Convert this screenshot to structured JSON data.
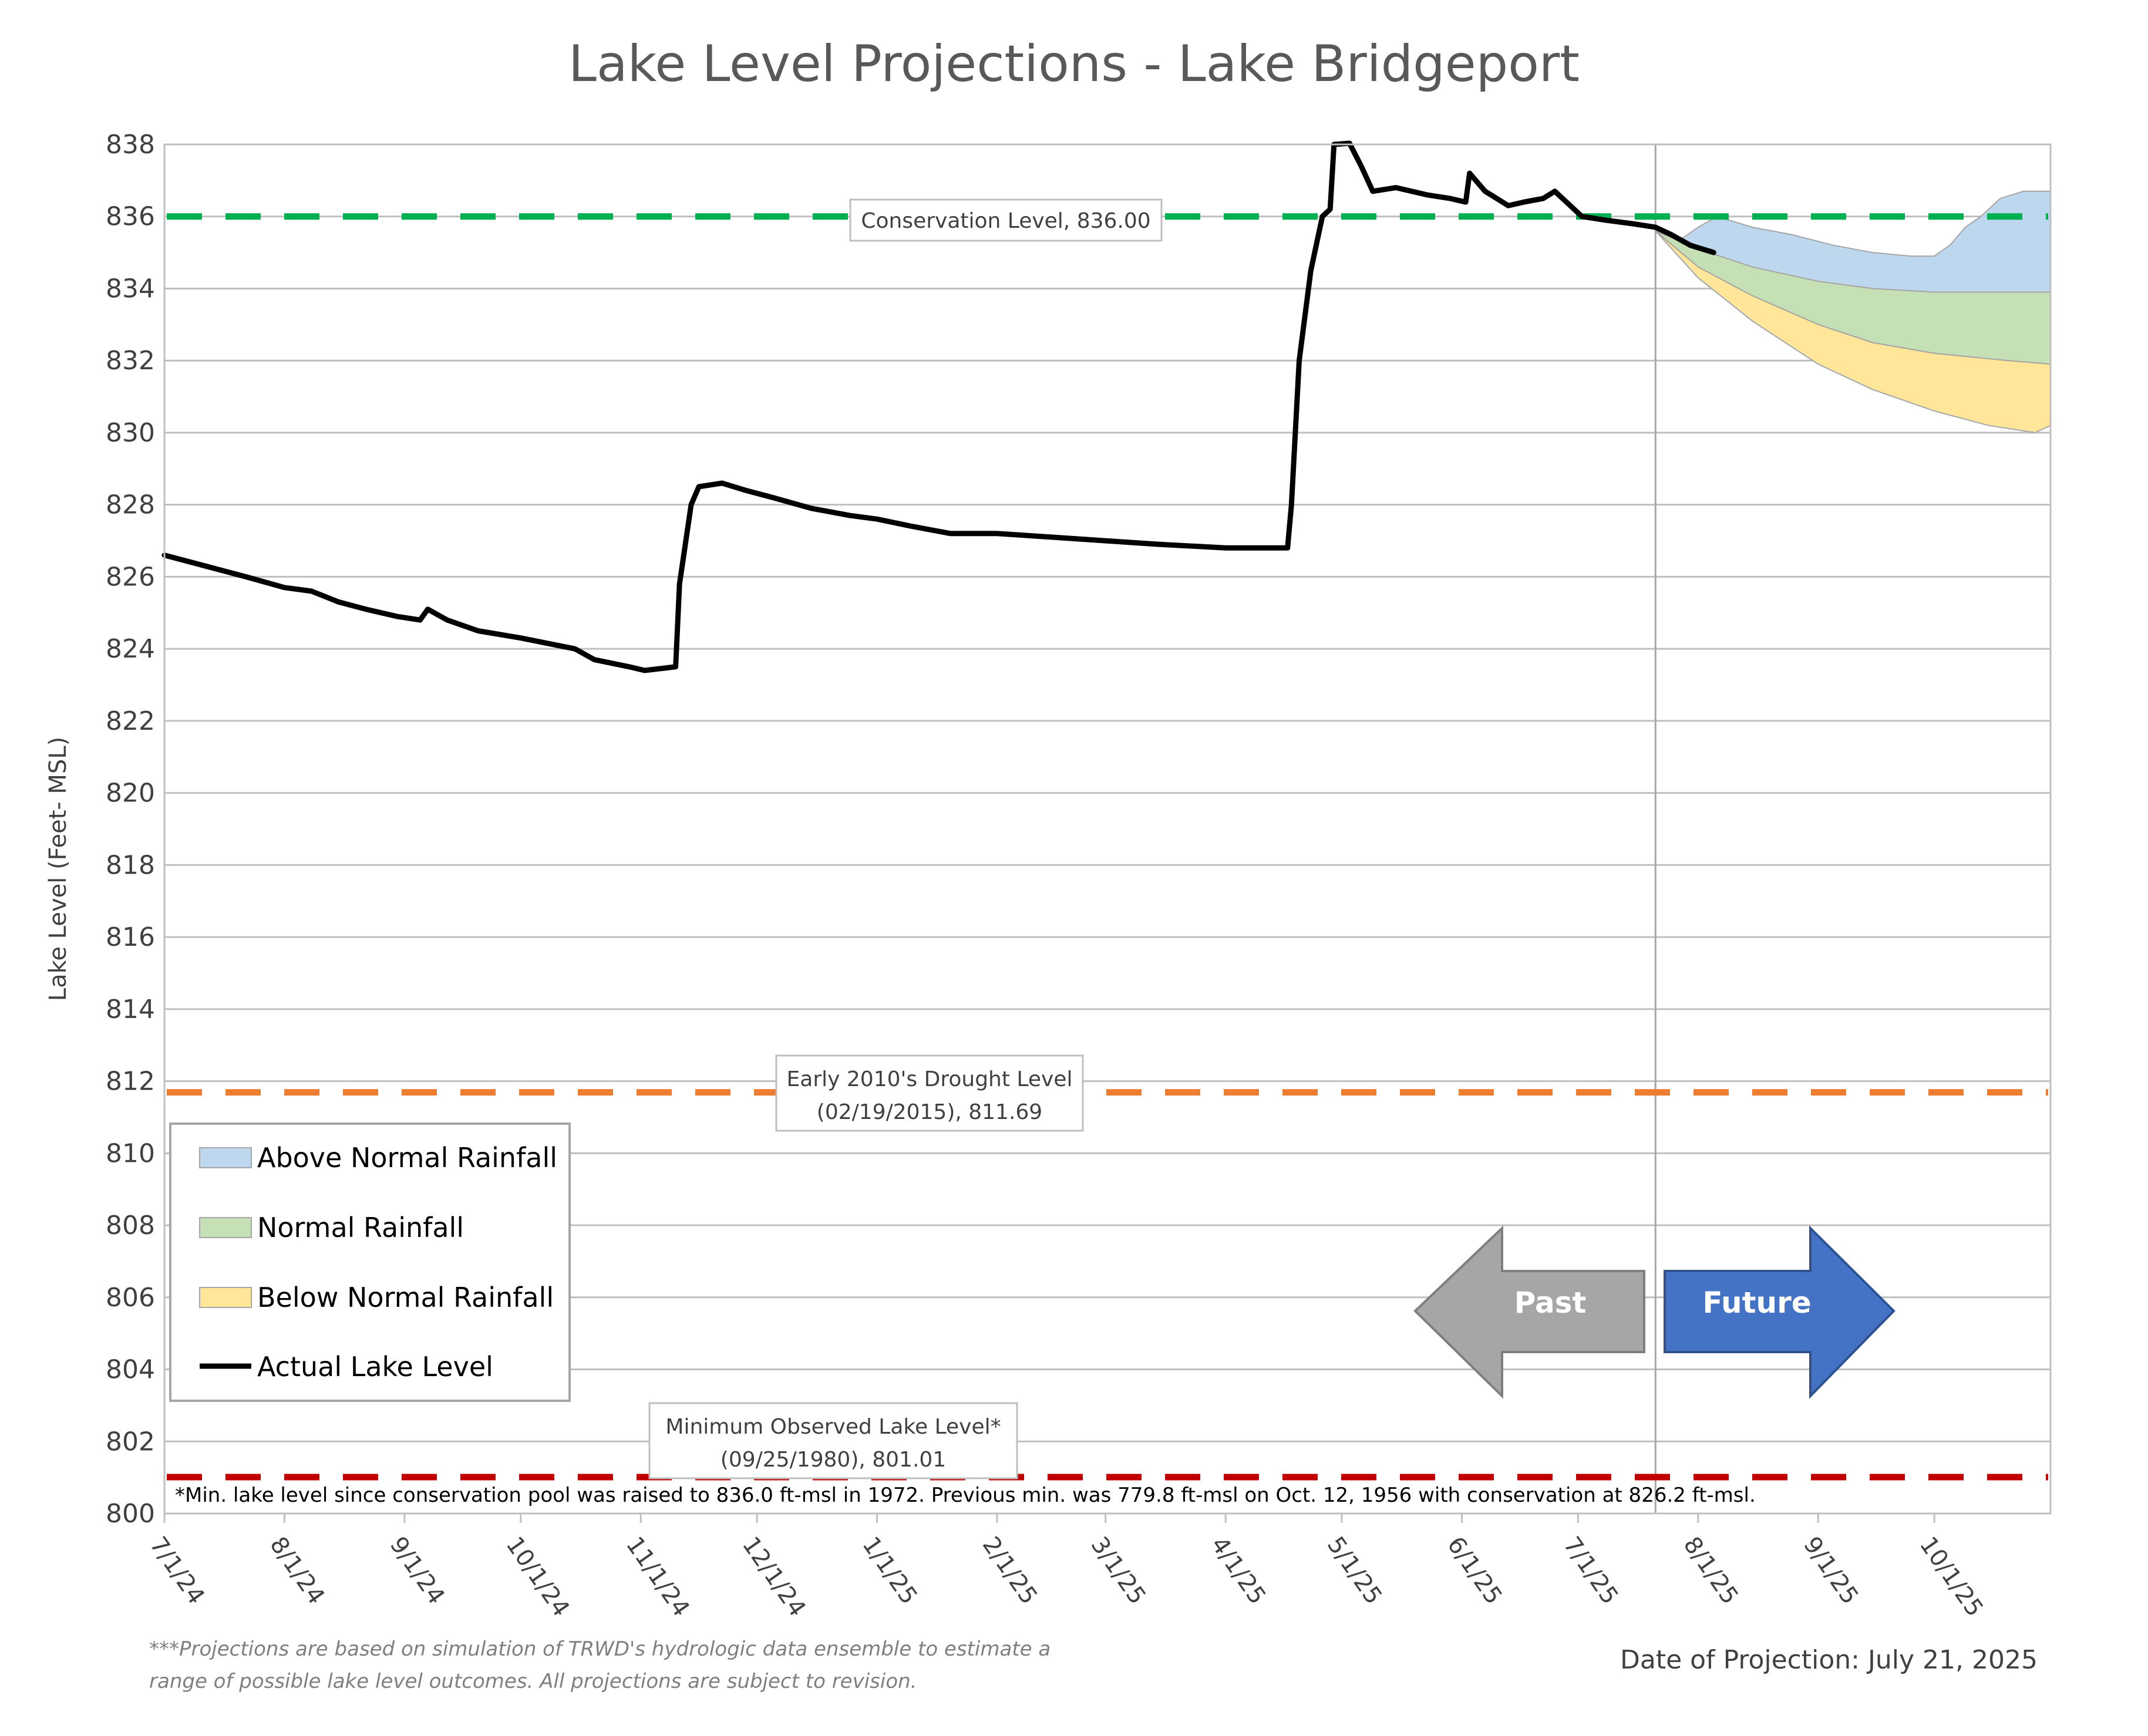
{
  "chart_data": {
    "type": "area",
    "title": "Lake Level Projections - Lake Bridgeport",
    "ylabel": "Lake Level (Feet- MSL)",
    "xlabel": "",
    "ylim": [
      800,
      838
    ],
    "yticks": [
      800,
      802,
      804,
      806,
      808,
      810,
      812,
      814,
      816,
      818,
      820,
      822,
      824,
      826,
      828,
      830,
      832,
      834,
      836,
      838
    ],
    "xlim": [
      "2024-07-01",
      "2025-10-31"
    ],
    "xticks": [
      {
        "date": "2024-07-01",
        "label": "7/1/24"
      },
      {
        "date": "2024-08-01",
        "label": "8/1/24"
      },
      {
        "date": "2024-09-01",
        "label": "9/1/24"
      },
      {
        "date": "2024-10-01",
        "label": "10/1/24"
      },
      {
        "date": "2024-11-01",
        "label": "11/1/24"
      },
      {
        "date": "2024-12-01",
        "label": "12/1/24"
      },
      {
        "date": "2025-01-01",
        "label": "1/1/25"
      },
      {
        "date": "2025-02-01",
        "label": "2/1/25"
      },
      {
        "date": "2025-03-01",
        "label": "3/1/25"
      },
      {
        "date": "2025-04-01",
        "label": "4/1/25"
      },
      {
        "date": "2025-05-01",
        "label": "5/1/25"
      },
      {
        "date": "2025-06-01",
        "label": "6/1/25"
      },
      {
        "date": "2025-07-01",
        "label": "7/1/25"
      },
      {
        "date": "2025-08-01",
        "label": "8/1/25"
      },
      {
        "date": "2025-09-01",
        "label": "9/1/25"
      },
      {
        "date": "2025-10-01",
        "label": "10/1/25"
      }
    ],
    "grid": true,
    "projection_start": "2025-07-21",
    "series": [
      {
        "name": "Actual Lake Level",
        "color": "#000000",
        "points": [
          [
            "2024-07-01",
            826.6
          ],
          [
            "2024-07-08",
            826.4
          ],
          [
            "2024-07-15",
            826.2
          ],
          [
            "2024-07-22",
            826.0
          ],
          [
            "2024-08-01",
            825.7
          ],
          [
            "2024-08-08",
            825.6
          ],
          [
            "2024-08-15",
            825.3
          ],
          [
            "2024-08-22",
            825.1
          ],
          [
            "2024-08-30",
            824.9
          ],
          [
            "2024-09-05",
            824.8
          ],
          [
            "2024-09-07",
            825.1
          ],
          [
            "2024-09-12",
            824.8
          ],
          [
            "2024-09-20",
            824.5
          ],
          [
            "2024-10-01",
            824.3
          ],
          [
            "2024-10-15",
            824.0
          ],
          [
            "2024-10-20",
            823.7
          ],
          [
            "2024-10-29",
            823.5
          ],
          [
            "2024-11-02",
            823.4
          ],
          [
            "2024-11-10",
            823.5
          ],
          [
            "2024-11-11",
            825.8
          ],
          [
            "2024-11-14",
            828.0
          ],
          [
            "2024-11-16",
            828.5
          ],
          [
            "2024-11-22",
            828.6
          ],
          [
            "2024-11-28",
            828.4
          ],
          [
            "2024-12-05",
            828.2
          ],
          [
            "2024-12-15",
            827.9
          ],
          [
            "2024-12-25",
            827.7
          ],
          [
            "2025-01-01",
            827.6
          ],
          [
            "2025-01-10",
            827.4
          ],
          [
            "2025-01-20",
            827.2
          ],
          [
            "2025-02-01",
            827.2
          ],
          [
            "2025-02-15",
            827.1
          ],
          [
            "2025-03-01",
            827.0
          ],
          [
            "2025-03-15",
            826.9
          ],
          [
            "2025-04-01",
            826.8
          ],
          [
            "2025-04-10",
            826.8
          ],
          [
            "2025-04-17",
            826.8
          ],
          [
            "2025-04-18",
            828.0
          ],
          [
            "2025-04-20",
            832.0
          ],
          [
            "2025-04-23",
            834.5
          ],
          [
            "2025-04-26",
            836.0
          ],
          [
            "2025-04-28",
            836.2
          ],
          [
            "2025-04-29",
            838.0
          ],
          [
            "2025-05-03",
            838.3
          ],
          [
            "2025-05-06",
            837.4
          ],
          [
            "2025-05-09",
            836.7
          ],
          [
            "2025-05-15",
            836.8
          ],
          [
            "2025-05-23",
            836.6
          ],
          [
            "2025-05-29",
            836.5
          ],
          [
            "2025-06-02",
            836.4
          ],
          [
            "2025-06-03",
            837.2
          ],
          [
            "2025-06-07",
            836.7
          ],
          [
            "2025-06-13",
            836.3
          ],
          [
            "2025-06-17",
            836.4
          ],
          [
            "2025-06-22",
            836.5
          ],
          [
            "2025-06-25",
            836.7
          ],
          [
            "2025-06-28",
            836.4
          ],
          [
            "2025-07-02",
            836.0
          ],
          [
            "2025-07-08",
            835.9
          ],
          [
            "2025-07-15",
            835.8
          ],
          [
            "2025-07-21",
            835.7
          ],
          [
            "2025-07-25",
            835.5
          ],
          [
            "2025-07-30",
            835.2
          ],
          [
            "2025-08-05",
            835.0
          ]
        ]
      },
      {
        "name": "Above Normal Rainfall",
        "color": "#bdd7ee",
        "upper": [
          [
            "2025-07-21",
            835.6
          ],
          [
            "2025-07-28",
            835.4
          ],
          [
            "2025-08-01",
            835.7
          ],
          [
            "2025-08-06",
            836.0
          ],
          [
            "2025-08-15",
            835.7
          ],
          [
            "2025-08-25",
            835.5
          ],
          [
            "2025-09-05",
            835.2
          ],
          [
            "2025-09-15",
            835.0
          ],
          [
            "2025-09-25",
            834.9
          ],
          [
            "2025-10-01",
            834.9
          ],
          [
            "2025-10-05",
            835.2
          ],
          [
            "2025-10-09",
            835.7
          ],
          [
            "2025-10-13",
            836.0
          ],
          [
            "2025-10-18",
            836.5
          ],
          [
            "2025-10-24",
            836.7
          ],
          [
            "2025-10-31",
            836.7
          ]
        ],
        "lower": [
          [
            "2025-07-21",
            835.6
          ],
          [
            "2025-08-01",
            835.1
          ],
          [
            "2025-08-15",
            834.6
          ],
          [
            "2025-09-01",
            834.2
          ],
          [
            "2025-09-15",
            834.0
          ],
          [
            "2025-10-01",
            833.9
          ],
          [
            "2025-10-31",
            833.9
          ]
        ]
      },
      {
        "name": "Normal Rainfall",
        "color": "#c5e0b4",
        "upper": [
          [
            "2025-07-21",
            835.6
          ],
          [
            "2025-08-01",
            835.1
          ],
          [
            "2025-08-15",
            834.6
          ],
          [
            "2025-09-01",
            834.2
          ],
          [
            "2025-09-15",
            834.0
          ],
          [
            "2025-10-01",
            833.9
          ],
          [
            "2025-10-31",
            833.9
          ]
        ],
        "lower": [
          [
            "2025-07-21",
            835.6
          ],
          [
            "2025-08-01",
            834.6
          ],
          [
            "2025-08-15",
            833.8
          ],
          [
            "2025-09-01",
            833.0
          ],
          [
            "2025-09-15",
            832.5
          ],
          [
            "2025-10-01",
            832.2
          ],
          [
            "2025-10-20",
            832.0
          ],
          [
            "2025-10-31",
            831.9
          ]
        ]
      },
      {
        "name": "Below Normal Rainfall",
        "color": "#ffe699",
        "upper": [
          [
            "2025-07-21",
            835.6
          ],
          [
            "2025-08-01",
            834.6
          ],
          [
            "2025-08-15",
            833.8
          ],
          [
            "2025-09-01",
            833.0
          ],
          [
            "2025-09-15",
            832.5
          ],
          [
            "2025-10-01",
            832.2
          ],
          [
            "2025-10-20",
            832.0
          ],
          [
            "2025-10-31",
            831.9
          ]
        ],
        "lower": [
          [
            "2025-07-21",
            835.6
          ],
          [
            "2025-08-01",
            834.3
          ],
          [
            "2025-08-15",
            833.1
          ],
          [
            "2025-09-01",
            831.9
          ],
          [
            "2025-09-15",
            831.2
          ],
          [
            "2025-10-01",
            830.6
          ],
          [
            "2025-10-15",
            830.2
          ],
          [
            "2025-10-27",
            830.0
          ],
          [
            "2025-10-31",
            830.2
          ]
        ]
      }
    ],
    "reference_lines": [
      {
        "name": "Conservation Level",
        "value": 836.0,
        "color": "#00b050",
        "label": "Conservation Level, 836.00"
      },
      {
        "name": "Early 2010's Drought Level",
        "value": 811.69,
        "color": "#ed7d31",
        "label_lines": [
          "Early 2010's Drought Level",
          "(02/19/2015), 811.69"
        ]
      },
      {
        "name": "Minimum Observed Lake Level",
        "value": 801.01,
        "color": "#c00000",
        "label_lines": [
          "Minimum Observed Lake Level*",
          "(09/25/1980), 801.01"
        ]
      }
    ],
    "legend": {
      "position": "bottom-left",
      "items": [
        {
          "label": "Above Normal Rainfall",
          "color": "#bdd7ee",
          "kind": "area"
        },
        {
          "label": "Normal Rainfall",
          "color": "#c5e0b4",
          "kind": "area"
        },
        {
          "label": "Below Normal Rainfall",
          "color": "#ffe699",
          "kind": "area"
        },
        {
          "label": "Actual Lake Level",
          "color": "#000000",
          "kind": "line"
        }
      ]
    },
    "arrows": {
      "past": {
        "label": "Past",
        "color": "#a6a6a6"
      },
      "future": {
        "label": "Future",
        "color": "#4472c4"
      }
    },
    "min_note": "*Min. lake level since conservation pool was raised to 836.0 ft-msl in 1972.  Previous min. was 779.8 ft-msl on Oct. 12, 1956 with conservation at 826.2 ft-msl.",
    "footnote_lines": [
      "***Projections are based on simulation of TRWD's hydrologic data ensemble to estimate a",
      "range of possible lake level outcomes.  All projections are subject to revision."
    ],
    "projection_date": "Date of Projection: July 21, 2025"
  }
}
